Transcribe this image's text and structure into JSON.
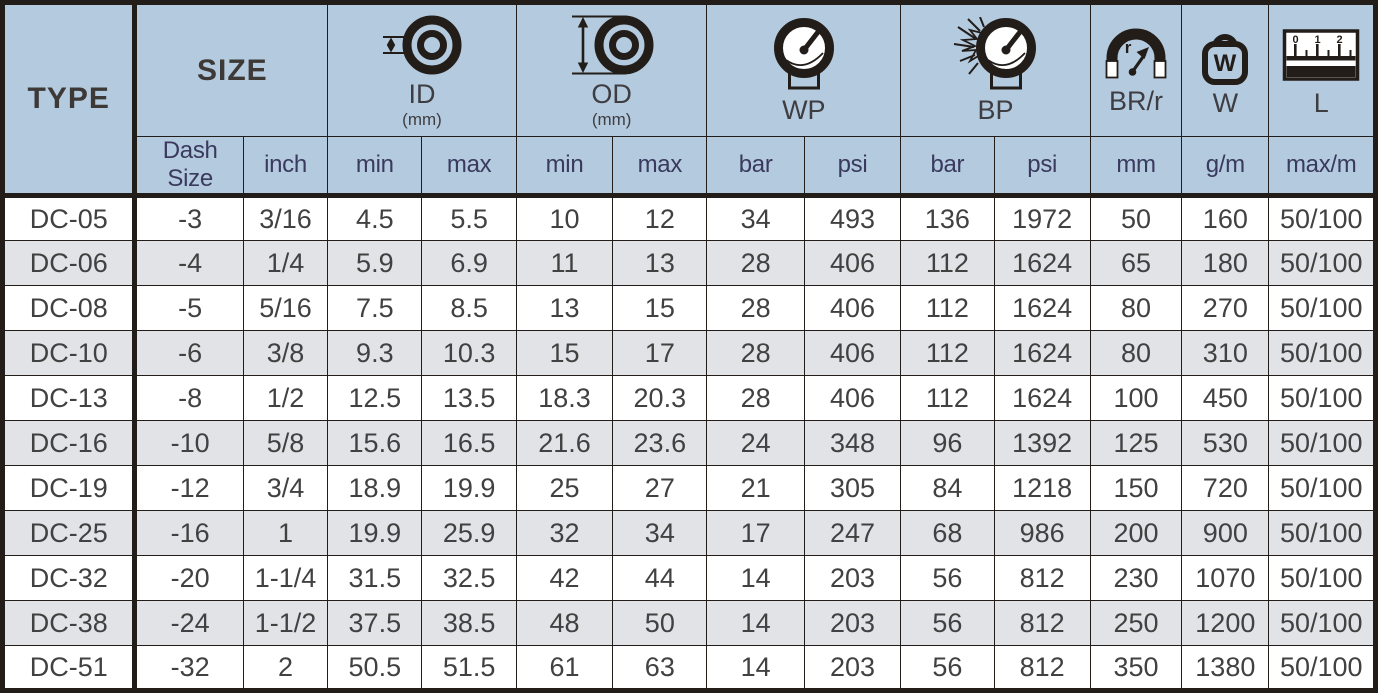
{
  "table": {
    "groups": {
      "type": {
        "label": "TYPE"
      },
      "size": {
        "label": "SIZE"
      },
      "id": {
        "label": "ID",
        "unit": "(mm)",
        "icon": "inner-diameter-icon"
      },
      "od": {
        "label": "OD",
        "unit": "(mm)",
        "icon": "outer-diameter-icon"
      },
      "wp": {
        "label": "WP",
        "icon": "working-pressure-gauge-icon"
      },
      "bp": {
        "label": "BP",
        "icon": "burst-pressure-gauge-icon"
      },
      "brr": {
        "label": "BR/r",
        "icon": "bend-radius-icon"
      },
      "w": {
        "label": "W",
        "icon": "weight-icon"
      },
      "l": {
        "label": "L",
        "icon": "length-ruler-icon"
      }
    },
    "sub_headers": [
      "Dash Size",
      "inch",
      "min",
      "max",
      "min",
      "max",
      "bar",
      "psi",
      "bar",
      "psi",
      "mm",
      "g/m",
      "max/m"
    ],
    "rows": [
      [
        "DC-05",
        "-3",
        "3/16",
        "4.5",
        "5.5",
        "10",
        "12",
        "34",
        "493",
        "136",
        "1972",
        "50",
        "160",
        "50/100"
      ],
      [
        "DC-06",
        "-4",
        "1/4",
        "5.9",
        "6.9",
        "11",
        "13",
        "28",
        "406",
        "112",
        "1624",
        "65",
        "180",
        "50/100"
      ],
      [
        "DC-08",
        "-5",
        "5/16",
        "7.5",
        "8.5",
        "13",
        "15",
        "28",
        "406",
        "112",
        "1624",
        "80",
        "270",
        "50/100"
      ],
      [
        "DC-10",
        "-6",
        "3/8",
        "9.3",
        "10.3",
        "15",
        "17",
        "28",
        "406",
        "112",
        "1624",
        "80",
        "310",
        "50/100"
      ],
      [
        "DC-13",
        "-8",
        "1/2",
        "12.5",
        "13.5",
        "18.3",
        "20.3",
        "28",
        "406",
        "112",
        "1624",
        "100",
        "450",
        "50/100"
      ],
      [
        "DC-16",
        "-10",
        "5/8",
        "15.6",
        "16.5",
        "21.6",
        "23.6",
        "24",
        "348",
        "96",
        "1392",
        "125",
        "530",
        "50/100"
      ],
      [
        "DC-19",
        "-12",
        "3/4",
        "18.9",
        "19.9",
        "25",
        "27",
        "21",
        "305",
        "84",
        "1218",
        "150",
        "720",
        "50/100"
      ],
      [
        "DC-25",
        "-16",
        "1",
        "19.9",
        "25.9",
        "32",
        "34",
        "17",
        "247",
        "68",
        "986",
        "200",
        "900",
        "50/100"
      ],
      [
        "DC-32",
        "-20",
        "1-1/4",
        "31.5",
        "32.5",
        "42",
        "44",
        "14",
        "203",
        "56",
        "812",
        "230",
        "1070",
        "50/100"
      ],
      [
        "DC-38",
        "-24",
        "1-1/2",
        "37.5",
        "38.5",
        "48",
        "50",
        "14",
        "203",
        "56",
        "812",
        "250",
        "1200",
        "50/100"
      ],
      [
        "DC-51",
        "-32",
        "2",
        "50.5",
        "51.5",
        "61",
        "63",
        "14",
        "203",
        "56",
        "812",
        "350",
        "1380",
        "50/100"
      ]
    ]
  },
  "colors": {
    "header_background": "#b4cade",
    "row_alternate_background": "#e2e3e6",
    "row_background": "#ffffff",
    "border_ink": "#231d1a",
    "subheader_text": "#3a3a5e",
    "data_text": "#414141",
    "title_text": "#3c3936"
  }
}
